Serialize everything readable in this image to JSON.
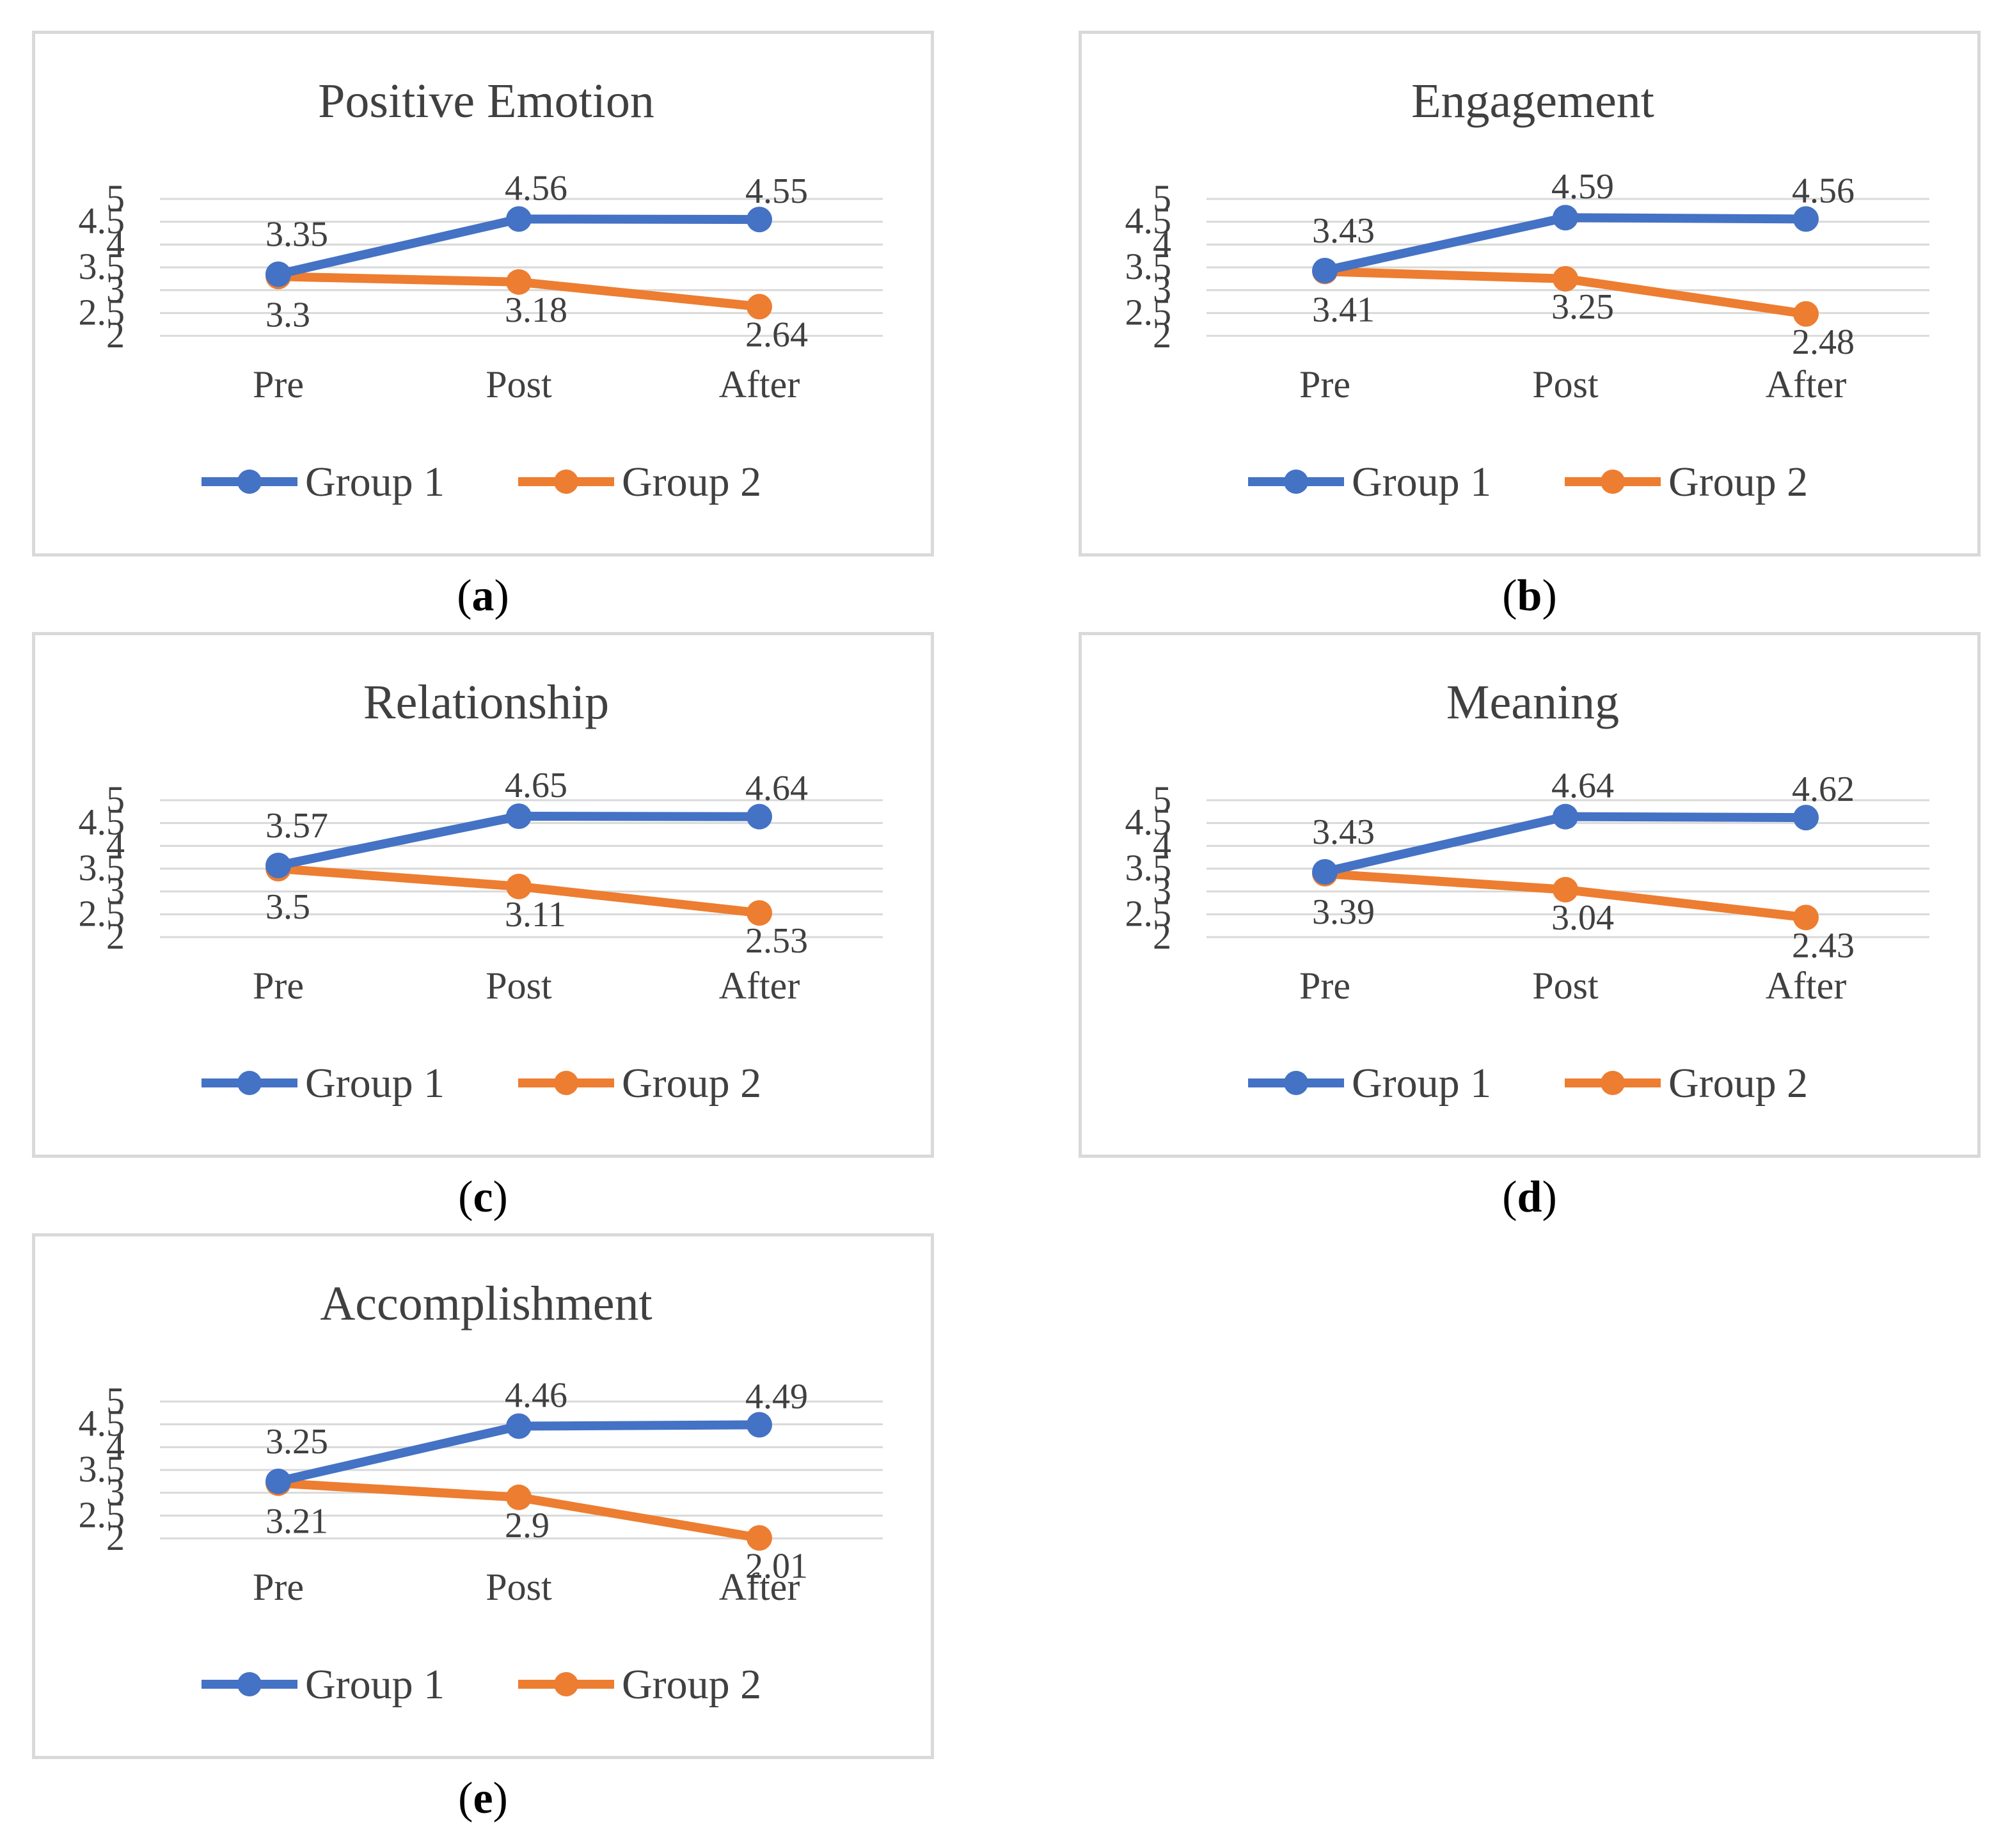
{
  "colors": {
    "group1": "#4472C4",
    "group2": "#ED7D31"
  },
  "chart_data": [
    {
      "type": "line",
      "id": "a",
      "caption": "a",
      "title": "Positive Emotion",
      "categories": [
        "Pre",
        "Post",
        "After"
      ],
      "ylim": [
        2,
        5
      ],
      "yticks": [
        "2",
        "2.5",
        "3",
        "3.5",
        "4",
        "4.5",
        "5"
      ],
      "series": [
        {
          "name": "Group 1",
          "values": [
            3.35,
            4.56,
            4.55
          ],
          "labels": [
            "3.35",
            "4.56",
            "4.55"
          ]
        },
        {
          "name": "Group 2",
          "values": [
            3.3,
            3.18,
            2.64
          ],
          "labels": [
            "3.3",
            "3.18",
            "2.64"
          ]
        }
      ],
      "legend": "bottom"
    },
    {
      "type": "line",
      "id": "b",
      "caption": "b",
      "title": "Engagement",
      "categories": [
        "Pre",
        "Post",
        "After"
      ],
      "ylim": [
        2,
        5
      ],
      "yticks": [
        "2",
        "2.5",
        "3",
        "3.5",
        "4",
        "4.5",
        "5"
      ],
      "series": [
        {
          "name": "Group 1",
          "values": [
            3.43,
            4.59,
            4.56
          ],
          "labels": [
            "3.43",
            "4.59",
            "4.56"
          ]
        },
        {
          "name": "Group 2",
          "values": [
            3.41,
            3.25,
            2.48
          ],
          "labels": [
            "3.41",
            "3.25",
            "2.48"
          ]
        }
      ],
      "legend": "bottom"
    },
    {
      "type": "line",
      "id": "c",
      "caption": "c",
      "title": "Relationship",
      "categories": [
        "Pre",
        "Post",
        "After"
      ],
      "ylim": [
        2,
        5
      ],
      "yticks": [
        "2",
        "2.5",
        "3",
        "3.5",
        "4",
        "4.5",
        "5"
      ],
      "series": [
        {
          "name": "Group 1",
          "values": [
            3.57,
            4.65,
            4.64
          ],
          "labels": [
            "3.57",
            "4.65",
            "4.64"
          ]
        },
        {
          "name": "Group 2",
          "values": [
            3.5,
            3.11,
            2.53
          ],
          "labels": [
            "3.5",
            "3.11",
            "2.53"
          ]
        }
      ],
      "legend": "bottom"
    },
    {
      "type": "line",
      "id": "d",
      "caption": "d",
      "title": "Meaning",
      "categories": [
        "Pre",
        "Post",
        "After"
      ],
      "ylim": [
        2,
        5
      ],
      "yticks": [
        "2",
        "2.5",
        "3",
        "3.5",
        "4",
        "4.5",
        "5"
      ],
      "series": [
        {
          "name": "Group 1",
          "values": [
            3.43,
            4.64,
            4.62
          ],
          "labels": [
            "3.43",
            "4.64",
            "4.62"
          ]
        },
        {
          "name": "Group 2",
          "values": [
            3.39,
            3.04,
            2.43
          ],
          "labels": [
            "3.39",
            "3.04",
            "2.43"
          ]
        }
      ],
      "legend": "bottom"
    },
    {
      "type": "line",
      "id": "e",
      "caption": "e",
      "title": "Accomplishment",
      "categories": [
        "Pre",
        "Post",
        "After"
      ],
      "ylim": [
        2,
        5
      ],
      "yticks": [
        "2",
        "2.5",
        "3",
        "3.5",
        "4",
        "4.5",
        "5"
      ],
      "series": [
        {
          "name": "Group 1",
          "values": [
            3.25,
            4.46,
            4.49
          ],
          "labels": [
            "3.25",
            "4.46",
            "4.49"
          ]
        },
        {
          "name": "Group 2",
          "values": [
            3.21,
            2.9,
            2.01
          ],
          "labels": [
            "3.21",
            "2.9",
            "2.01"
          ]
        }
      ],
      "legend": "bottom"
    }
  ]
}
